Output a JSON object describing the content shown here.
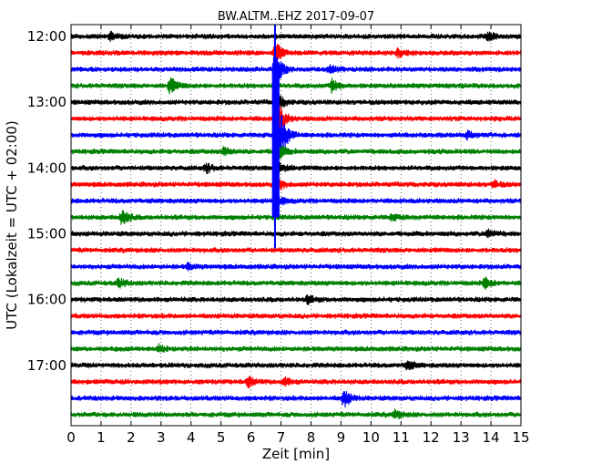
{
  "chart_data": {
    "type": "line",
    "title": "BW.ALTM..EHZ 2017-09-07",
    "xlabel": "Zeit  [min]",
    "ylabel": "UTC (Lokalzeit = UTC + 02:00)",
    "xlim": [
      0,
      15
    ],
    "x_ticks": [
      0,
      1,
      2,
      3,
      4,
      5,
      6,
      7,
      8,
      9,
      10,
      11,
      12,
      13,
      14,
      15
    ],
    "y_tick_labels": [
      "12:00",
      "13:00",
      "14:00",
      "15:00",
      "16:00",
      "17:00"
    ],
    "traces_per_hour": 4,
    "trace_interval_minutes": 15,
    "trace_colors": [
      "#000000",
      "#ff0000",
      "#0000ff",
      "#008000"
    ],
    "grid": "vertical dotted lines at each minute",
    "traces": [
      {
        "start": "12:00",
        "events": [
          {
            "x": 1.3,
            "amp": 0.25
          },
          {
            "x": 13.9,
            "amp": 0.3
          }
        ]
      },
      {
        "start": "12:15",
        "events": [
          {
            "x": 6.8,
            "amp": 0.8
          },
          {
            "x": 10.9,
            "amp": 0.25
          }
        ]
      },
      {
        "start": "12:30",
        "events": [
          {
            "x": 6.8,
            "amp": 1.3
          },
          {
            "x": 8.6,
            "amp": 0.3
          }
        ]
      },
      {
        "start": "12:45",
        "events": [
          {
            "x": 3.3,
            "amp": 0.55
          },
          {
            "x": 8.7,
            "amp": 0.45
          }
        ]
      },
      {
        "start": "13:00",
        "events": [
          {
            "x": 6.8,
            "amp": 0.9
          }
        ]
      },
      {
        "start": "13:15",
        "events": [
          {
            "x": 6.9,
            "amp": 1.1
          }
        ]
      },
      {
        "start": "13:30",
        "events": [
          {
            "x": 7.0,
            "amp": 1.6
          },
          {
            "x": 13.2,
            "amp": 0.25
          }
        ]
      },
      {
        "start": "13:45",
        "events": [
          {
            "x": 5.1,
            "amp": 0.3
          },
          {
            "x": 6.9,
            "amp": 0.6
          }
        ]
      },
      {
        "start": "14:00",
        "events": [
          {
            "x": 4.5,
            "amp": 0.3
          },
          {
            "x": 6.9,
            "amp": 0.5
          }
        ]
      },
      {
        "start": "14:15",
        "events": [
          {
            "x": 6.9,
            "amp": 0.4
          },
          {
            "x": 14.1,
            "amp": 0.25
          }
        ]
      },
      {
        "start": "14:30",
        "events": [
          {
            "x": 6.9,
            "amp": 0.35
          }
        ]
      },
      {
        "start": "14:45",
        "events": [
          {
            "x": 1.7,
            "amp": 0.55
          },
          {
            "x": 10.7,
            "amp": 0.2
          }
        ]
      },
      {
        "start": "15:00",
        "events": [
          {
            "x": 13.9,
            "amp": 0.3
          }
        ]
      },
      {
        "start": "15:15",
        "events": []
      },
      {
        "start": "15:30",
        "events": [
          {
            "x": 3.9,
            "amp": 0.2
          }
        ]
      },
      {
        "start": "15:45",
        "events": [
          {
            "x": 1.6,
            "amp": 0.3
          },
          {
            "x": 13.8,
            "amp": 0.35
          }
        ]
      },
      {
        "start": "16:00",
        "events": [
          {
            "x": 7.9,
            "amp": 0.25
          }
        ]
      },
      {
        "start": "16:15",
        "events": []
      },
      {
        "start": "16:30",
        "events": []
      },
      {
        "start": "16:45",
        "events": [
          {
            "x": 2.9,
            "amp": 0.3
          }
        ]
      },
      {
        "start": "17:00",
        "events": [
          {
            "x": 11.2,
            "amp": 0.35
          }
        ]
      },
      {
        "start": "17:15",
        "events": [
          {
            "x": 5.9,
            "amp": 0.35
          },
          {
            "x": 7.1,
            "amp": 0.3
          }
        ]
      },
      {
        "start": "17:30",
        "events": [
          {
            "x": 9.1,
            "amp": 0.6
          }
        ]
      },
      {
        "start": "17:45",
        "events": [
          {
            "x": 10.8,
            "amp": 0.3
          }
        ]
      }
    ],
    "quake_line": {
      "x": 6.8,
      "from_trace": 0,
      "to_trace": 13,
      "color": "#0000ff"
    },
    "quake_band": {
      "x_start": 6.7,
      "x_end": 6.95,
      "from_trace": 2,
      "to_trace": 11,
      "color": "#0000ff"
    }
  }
}
